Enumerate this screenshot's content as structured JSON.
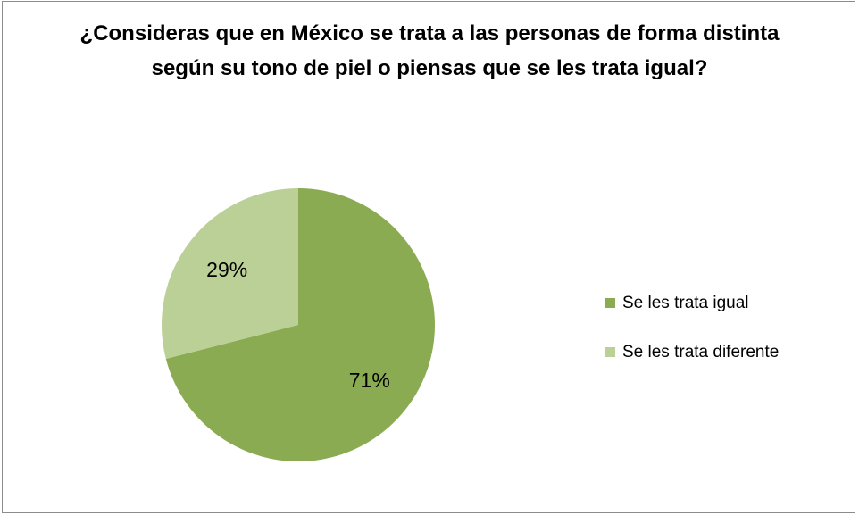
{
  "chart_data": {
    "type": "pie",
    "title": "¿Consideras que en México se trata a las personas de forma distinta según su tono de piel o piensas que se les trata igual?",
    "categories": [
      "Se les trata igual",
      "Se les trata diferente"
    ],
    "values": [
      71,
      29
    ],
    "data_labels": [
      "71%",
      "29%"
    ],
    "colors": [
      "#8aab52",
      "#bbd096"
    ],
    "legend_position": "right"
  }
}
